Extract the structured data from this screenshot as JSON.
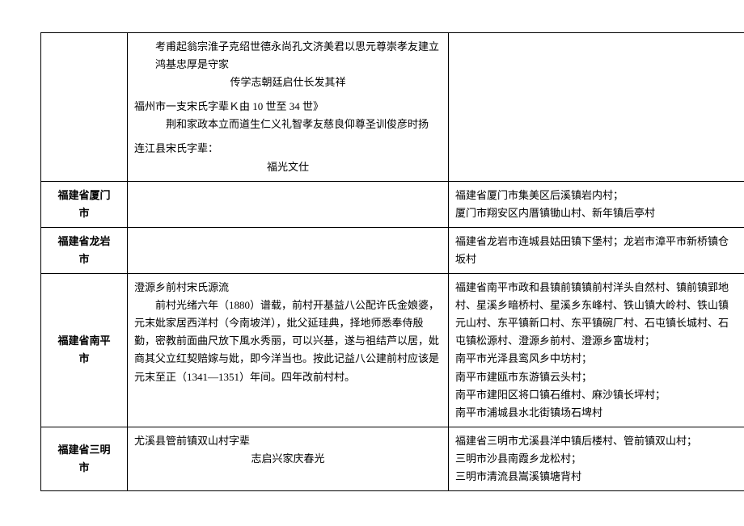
{
  "table": {
    "rows": [
      {
        "region": "",
        "text_lines": [
          {
            "txt": "考甫起翁宗淮子克绍世德永尚孔文济美君以思元尊崇孝友建立鸿基忠厚是守家",
            "cls": "indent2"
          },
          {
            "txt": "传学志朝廷启仕长发其祥",
            "cls": "center-line"
          },
          {
            "txt": "",
            "cls": "spacer"
          },
          {
            "txt": "福州市一支宋氏字辈Ｋ由 10 世至 34 世》",
            "cls": ""
          },
          {
            "txt": "荆和家政本立而道生仁义礼智孝友慈良仰尊圣训俊彦时扬",
            "cls": "indent1"
          },
          {
            "txt": "",
            "cls": "spacer"
          },
          {
            "txt": "连江县宋氏字辈：",
            "cls": ""
          },
          {
            "txt": "福光文仕",
            "cls": "center-line"
          }
        ],
        "loc_lines": []
      },
      {
        "region": "福建省厦门市",
        "text_lines": [],
        "loc_lines": [
          "福建省厦门市集美区后溪镇岩内村；",
          "厦门市翔安区内厝镇锄山村、新年镇后亭村"
        ]
      },
      {
        "region": "福建省龙岩市",
        "text_lines": [],
        "loc_lines": [
          "福建省龙岩市连城县姑田镇下堡村；龙岩市漳平市新桥镇仓坂村"
        ]
      },
      {
        "region": "福建省南平市",
        "text_lines": [
          {
            "txt": "澄源乡前村宋氏源流",
            "cls": ""
          },
          {
            "txt": "　　前村光绪六年（1880）谱载，前村开基益八公配许氏金娘婆，元末妣家居西洋村（今南坡洋），妣父延珪典，择地师悉奉侍殷勤，密教前面曲尺放下風水秀丽，可以兴基，遂与祖结芦以居，妣商其父立红契赔嫁与妣，即今洋当也。按此记益八公建前村应该是元末至正（1341—1351）年间。四年改前村村。",
            "cls": ""
          }
        ],
        "loc_lines": [
          "福建省南平市政和县镇前镇镇前村洋头自然村、镇前镇郢地村、星溪乡暗桥村、星溪乡东峰村、铁山镇大岭村、铁山镇元山村、东平镇新口村、东平镇碗厂村、石屯镇长城村、石屯镇松源村、澄源乡前村、澄源乡富垅村；",
          "南平市光泽县鸾风乡中坊村；",
          "南平市建瓯市东游镇云头村；",
          "南平市建阳区将口镇石维村、麻沙镇长坪村；",
          "南平市浦城县水北街镇场石埤村"
        ]
      },
      {
        "region": "福建省三明市",
        "text_lines": [
          {
            "txt": "尤溪县管前镇双山村字辈",
            "cls": ""
          },
          {
            "txt": "志启兴家庆春光",
            "cls": "center-line"
          }
        ],
        "loc_lines": [
          "福建省三明市尤溪县洋中镇后楼村、管前镇双山村；",
          "三明市沙县南霞乡龙松村；",
          "三明市清流县嵩溪镇塘背村"
        ]
      }
    ]
  }
}
